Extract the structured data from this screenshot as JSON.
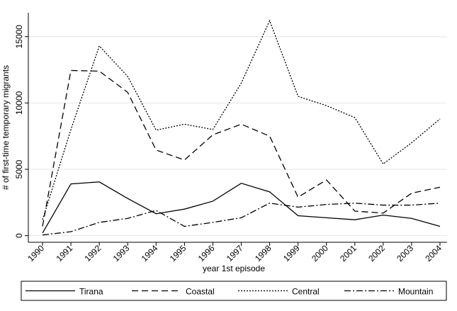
{
  "chart_data": {
    "type": "line",
    "x_label": "year 1st episode",
    "y_label": "# of first-time temporary migrants",
    "x": [
      1990,
      1991,
      1992,
      1993,
      1994,
      1995,
      1996,
      1997,
      1998,
      1999,
      2000,
      2001,
      2002,
      2003,
      2004
    ],
    "xlim": [
      1989.5,
      2004.25
    ],
    "xticks": [
      1990,
      1991,
      1992,
      1993,
      1994,
      1995,
      1996,
      1997,
      1998,
      1999,
      2000,
      2001,
      2002,
      2003,
      2004
    ],
    "ylim": [
      -500,
      16800
    ],
    "yticks": [
      0,
      5000,
      10000,
      15000
    ],
    "grid": true,
    "legend": "bottom",
    "series": [
      {
        "name": "Tirana",
        "color": "#000000",
        "style": "solid",
        "values": [
          200,
          3900,
          4050,
          2800,
          1650,
          2000,
          2600,
          3950,
          3300,
          1500,
          1350,
          1200,
          1550,
          1300,
          700
        ]
      },
      {
        "name": "Coastal",
        "color": "#000000",
        "style": "dashed",
        "values": [
          700,
          12450,
          12400,
          10800,
          6450,
          5700,
          7600,
          8400,
          7500,
          2900,
          4200,
          1850,
          1700,
          3200,
          3650
        ]
      },
      {
        "name": "Central",
        "color": "#000000",
        "style": "dotted",
        "values": [
          1200,
          8000,
          14300,
          12000,
          7950,
          8400,
          8000,
          11500,
          16200,
          10500,
          9800,
          8900,
          5400,
          7000,
          8800
        ]
      },
      {
        "name": "Mountain",
        "color": "#000000",
        "style": "dashdot",
        "values": [
          50,
          300,
          1000,
          1300,
          1900,
          700,
          1000,
          1350,
          2450,
          2150,
          2350,
          2450,
          2300,
          2300,
          2450
        ]
      }
    ]
  }
}
